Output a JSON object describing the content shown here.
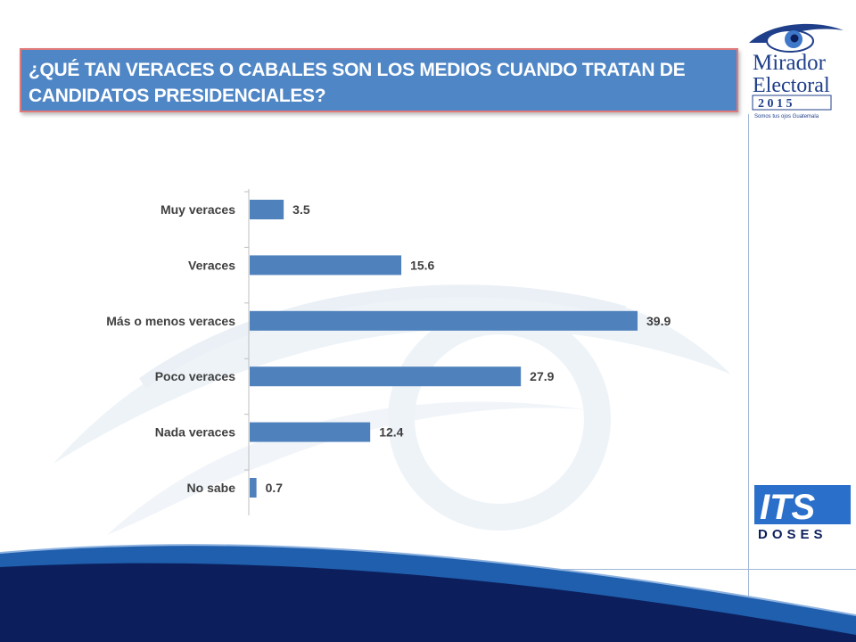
{
  "title": "¿QUÉ TAN VERACES O CABALES SON LOS MEDIOS CUANDO TRATAN DE CANDIDATOS PRESIDENCIALES?",
  "logos": {
    "mirador_line1": "Mirador",
    "mirador_line2": "Electoral",
    "mirador_year": "2 0 1 5",
    "mirador_tagline": "Somos tus ojos Guatemala",
    "doses_mark": "ITS",
    "doses_name": "DOSES"
  },
  "colors": {
    "bar": "#4f81bd",
    "title_bg": "#4f86c6",
    "footer_dark": "#0c1f5c",
    "footer_mid": "#1f5fae"
  },
  "chart_data": {
    "type": "bar",
    "orientation": "horizontal",
    "categories": [
      "Muy veraces",
      "Veraces",
      "Más o menos veraces",
      "Poco veraces",
      "Nada veraces",
      "No sabe"
    ],
    "values": [
      3.5,
      15.6,
      39.9,
      27.9,
      12.4,
      0.7
    ],
    "value_labels": [
      "3.5",
      "15.6",
      "39.9",
      "27.9",
      "12.4",
      "0.7"
    ],
    "xlim": [
      0,
      40
    ],
    "grid": false,
    "legend": "none"
  }
}
